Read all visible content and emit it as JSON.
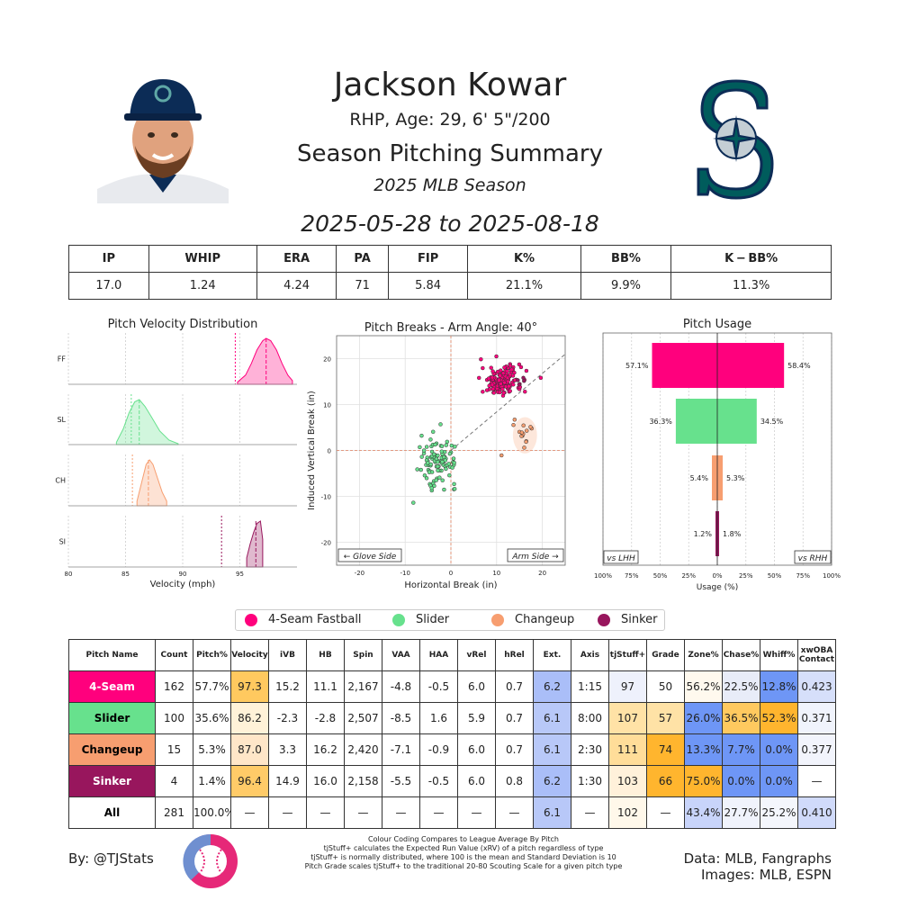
{
  "header": {
    "name": "Jackson Kowar",
    "subtitle": "RHP, Age: 29, 6' 5\"/200",
    "summary_title": "Season Pitching Summary",
    "season": "2025 MLB Season",
    "date_range": "2025-05-28 to 2025-08-18"
  },
  "season_stats": {
    "headers": [
      "IP",
      "WHIP",
      "ERA",
      "PA",
      "FIP",
      "K%",
      "BB%",
      "K − BB%"
    ],
    "values": [
      "17.0",
      "1.24",
      "4.24",
      "71",
      "5.84",
      "21.1%",
      "9.9%",
      "11.3%"
    ]
  },
  "colors": {
    "4-Seam Fastball": "#FF007D",
    "Slider": "#67E18D",
    "Changeup": "#F79E70",
    "Sinker": "#98165D"
  },
  "legend": [
    "4-Seam Fastball",
    "Slider",
    "Changeup",
    "Sinker"
  ],
  "chart_data": [
    {
      "type": "area",
      "title": "Pitch Velocity Distribution",
      "xlabel": "Velocity (mph)",
      "xlim": [
        80,
        100
      ],
      "xticks": [
        80,
        85,
        90,
        95
      ],
      "series": [
        {
          "name": "FF",
          "pitch": "4-Seam Fastball",
          "mean": 97.3,
          "league_mean": 94.6,
          "x": [
            94.8,
            95.5,
            96.0,
            96.5,
            97.0,
            97.3,
            97.7,
            98.2,
            98.7,
            99.2,
            99.6
          ],
          "density": [
            0.05,
            0.2,
            0.45,
            0.75,
            0.95,
            1.0,
            0.95,
            0.75,
            0.45,
            0.2,
            0.08
          ]
        },
        {
          "name": "SL",
          "pitch": "Slider",
          "mean": 86.2,
          "league_mean": 85.5,
          "x": [
            84.2,
            84.8,
            85.3,
            85.8,
            86.2,
            86.7,
            87.3,
            88.0,
            88.8,
            89.6
          ],
          "density": [
            0.05,
            0.35,
            0.7,
            0.95,
            1.0,
            0.85,
            0.6,
            0.3,
            0.1,
            0.02
          ]
        },
        {
          "name": "CH",
          "pitch": "Changeup",
          "mean": 87.0,
          "league_mean": 85.6,
          "x": [
            86.0,
            86.4,
            86.8,
            87.1,
            87.4,
            87.8,
            88.2,
            88.6
          ],
          "density": [
            0.1,
            0.5,
            0.9,
            1.0,
            0.9,
            0.6,
            0.3,
            0.1
          ]
        },
        {
          "name": "SI",
          "pitch": "Sinker",
          "mean": 96.4,
          "league_mean": 93.4,
          "x": [
            95.6,
            95.9,
            96.2,
            96.5,
            96.8,
            97.0
          ],
          "density": [
            0.2,
            0.5,
            0.75,
            0.95,
            1.0,
            0.6
          ]
        }
      ]
    },
    {
      "type": "scatter",
      "title": "Pitch Breaks - Arm Angle: 40°",
      "xlabel": "Horizontal Break (in)",
      "ylabel": "Induced Vertical Break (in)",
      "xlim": [
        -25,
        25
      ],
      "ylim": [
        -25,
        25
      ],
      "xticks": [
        -20,
        -10,
        0,
        10,
        20
      ],
      "yticks": [
        -20,
        -10,
        0,
        10,
        20
      ],
      "left_label": "← Glove Side",
      "right_label": "Arm Side →",
      "arm_angle_deg": 40,
      "series": [
        {
          "name": "4-Seam Fastball",
          "center": [
            11.1,
            15.2
          ],
          "spread": [
            2.2,
            1.6
          ],
          "count": 162
        },
        {
          "name": "Slider",
          "center": [
            -2.8,
            -2.3
          ],
          "spread": [
            2.0,
            2.6
          ],
          "count": 100
        },
        {
          "name": "Changeup",
          "center": [
            16.2,
            3.3
          ],
          "spread": [
            1.2,
            1.8
          ],
          "count": 15
        },
        {
          "name": "Sinker",
          "center": [
            16.0,
            14.9
          ],
          "spread": [
            0.8,
            0.8
          ],
          "count": 4
        }
      ]
    },
    {
      "type": "bar",
      "title": "Pitch Usage",
      "xlabel": "Usage (%)",
      "xticks": [
        "100%",
        "75%",
        "50%",
        "25%",
        "0%",
        "25%",
        "50%",
        "75%",
        "100%"
      ],
      "left_label": "vs LHH",
      "right_label": "vs RHH",
      "categories": [
        "4-Seam Fastball",
        "Slider",
        "Changeup",
        "Sinker"
      ],
      "series": [
        {
          "name": "vs LHH",
          "values": [
            57.1,
            36.3,
            5.4,
            1.2
          ]
        },
        {
          "name": "vs RHH",
          "values": [
            58.4,
            34.5,
            5.3,
            1.8
          ]
        }
      ]
    }
  ],
  "pitch_table": {
    "headers": [
      "Pitch Name",
      "Count",
      "Pitch%",
      "Velocity",
      "iVB",
      "HB",
      "Spin",
      "VAA",
      "HAA",
      "vRel",
      "hRel",
      "Ext.",
      "Axis",
      "tjStuff+",
      "Grade",
      "Zone%",
      "Chase%",
      "Whiff%",
      "xwOBA Contact"
    ],
    "rows": [
      {
        "name": "4-Seam",
        "label_bg": "#FF007D",
        "label_fg": "#ffffff",
        "cells": [
          "162",
          "57.7%",
          "97.3",
          "15.2",
          "11.1",
          "2,167",
          "-4.8",
          "-0.5",
          "6.0",
          "0.7",
          "6.2",
          "1:15",
          "97",
          "50",
          "56.2%",
          "22.5%",
          "12.8%",
          "0.423"
        ],
        "bg": [
          "",
          "",
          "#FFC95F",
          "",
          "",
          "",
          "",
          "",
          "",
          "",
          "#AABEF8",
          "",
          "#EEF1FC",
          "",
          "#FFF9EE",
          "#E8ECF8",
          "#6E96F6",
          "#D6DFFA"
        ]
      },
      {
        "name": "Slider",
        "label_bg": "#67E18D",
        "label_fg": "#000000",
        "cells": [
          "100",
          "35.6%",
          "86.2",
          "-2.3",
          "-2.8",
          "2,507",
          "-8.5",
          "1.6",
          "5.9",
          "0.7",
          "6.1",
          "8:00",
          "107",
          "57",
          "26.0%",
          "36.5%",
          "52.3%",
          "0.371"
        ],
        "bg": [
          "",
          "",
          "#FFF2D8",
          "",
          "",
          "",
          "",
          "",
          "",
          "",
          "#B8C8F8",
          "",
          "#FFE2A6",
          "#FFE2A6",
          "#6E96F6",
          "#FFC95F",
          "#FFB52E",
          "#F0F3FC"
        ]
      },
      {
        "name": "Changeup",
        "label_bg": "#F79E70",
        "label_fg": "#000000",
        "cells": [
          "15",
          "5.3%",
          "87.0",
          "3.3",
          "16.2",
          "2,420",
          "-7.1",
          "-0.9",
          "6.0",
          "0.7",
          "6.1",
          "2:30",
          "111",
          "74",
          "13.3%",
          "7.7%",
          "0.0%",
          "0.377"
        ],
        "bg": [
          "",
          "",
          "#FFE6C8",
          "",
          "",
          "",
          "",
          "",
          "",
          "",
          "#B8C8F8",
          "",
          "#FFDD99",
          "#FFB52E",
          "#6E96F6",
          "#6E96F6",
          "#6E96F6",
          "#F2F4FC"
        ]
      },
      {
        "name": "Sinker",
        "label_bg": "#98165D",
        "label_fg": "#ffffff",
        "cells": [
          "4",
          "1.4%",
          "96.4",
          "14.9",
          "16.0",
          "2,158",
          "-5.5",
          "-0.5",
          "6.0",
          "0.8",
          "6.2",
          "1:30",
          "103",
          "66",
          "75.0%",
          "0.0%",
          "0.0%",
          "—"
        ],
        "bg": [
          "",
          "",
          "#FFCB68",
          "",
          "",
          "",
          "",
          "",
          "",
          "",
          "#AABEF8",
          "",
          "#FFF1DA",
          "#FFB52E",
          "#FFB52E",
          "#6E96F6",
          "#6E96F6",
          ""
        ]
      },
      {
        "name": "All",
        "label_bg": "#ffffff",
        "label_fg": "#000000",
        "cells": [
          "281",
          "100.0%",
          "—",
          "—",
          "—",
          "—",
          "—",
          "—",
          "—",
          "—",
          "6.1",
          "—",
          "102",
          "—",
          "43.4%",
          "27.7%",
          "25.2%",
          "0.410"
        ],
        "bg": [
          "",
          "",
          "",
          "",
          "",
          "",
          "",
          "",
          "",
          "",
          "#B8C8F8",
          "",
          "#FFF8EA",
          "",
          "#C8D4FA",
          "#F0F3FC",
          "#F4F6FC",
          "#D0DAFA"
        ]
      }
    ]
  },
  "footer": {
    "credit": "By: @TJStats",
    "notes": [
      "Colour Coding Compares to League Average By Pitch",
      "tjStuff+ calculates the Expected Run Value (xRV) of a pitch regardless of type",
      "tjStuff+ is normally distributed, where 100 is the mean and Standard Deviation is 10",
      "Pitch Grade scales tjStuff+ to the traditional 20-80 Scouting Scale for a given pitch type"
    ],
    "data_source": "Data: MLB, Fangraphs",
    "images_source": "Images: MLB, ESPN"
  }
}
